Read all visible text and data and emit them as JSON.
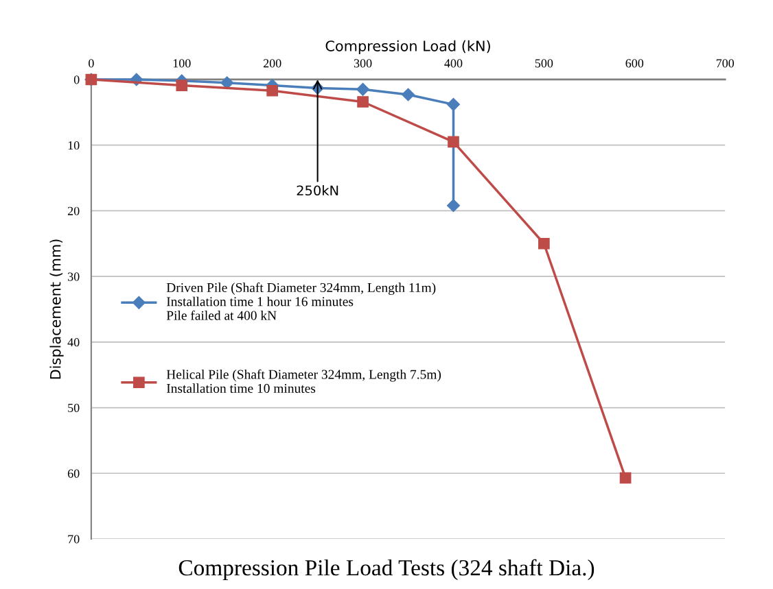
{
  "chart_data": {
    "type": "line",
    "title": "Compression Pile Load Tests (324 shaft Dia.)",
    "xlabel": "Compression Load (kN)",
    "ylabel": "Displacement (mm)",
    "xlim": [
      0,
      700
    ],
    "xticks": [
      0,
      100,
      200,
      300,
      400,
      500,
      600,
      700
    ],
    "ylim": [
      70,
      0
    ],
    "yticks": [
      0,
      10,
      20,
      30,
      40,
      50,
      60,
      70
    ],
    "grid": "y",
    "legend": "left",
    "series": [
      {
        "name": "Driven Pile (Shaft Diameter 324mm, Length 11m)\nInstallation time 1 hour 16 minutes\nPile failed at 400 kN",
        "color": "#4a7ebb",
        "marker": "diamond",
        "x": [
          0,
          50,
          100,
          150,
          200,
          250,
          300,
          350,
          400,
          400
        ],
        "values": [
          0,
          0,
          0.2,
          0.5,
          0.9,
          1.3,
          1.5,
          2.3,
          3.8,
          19.2
        ]
      },
      {
        "name": "Helical Pile (Shaft Diameter 324mm, Length 7.5m)\nInstallation time 10 minutes",
        "color": "#be4b48",
        "marker": "square",
        "x": [
          0,
          100,
          200,
          300,
          400,
          500,
          590
        ],
        "values": [
          0,
          0.9,
          1.7,
          3.4,
          9.5,
          25,
          60.7
        ]
      }
    ],
    "annotations": [
      {
        "text": "250kN",
        "x": 250,
        "y": 0
      }
    ]
  }
}
